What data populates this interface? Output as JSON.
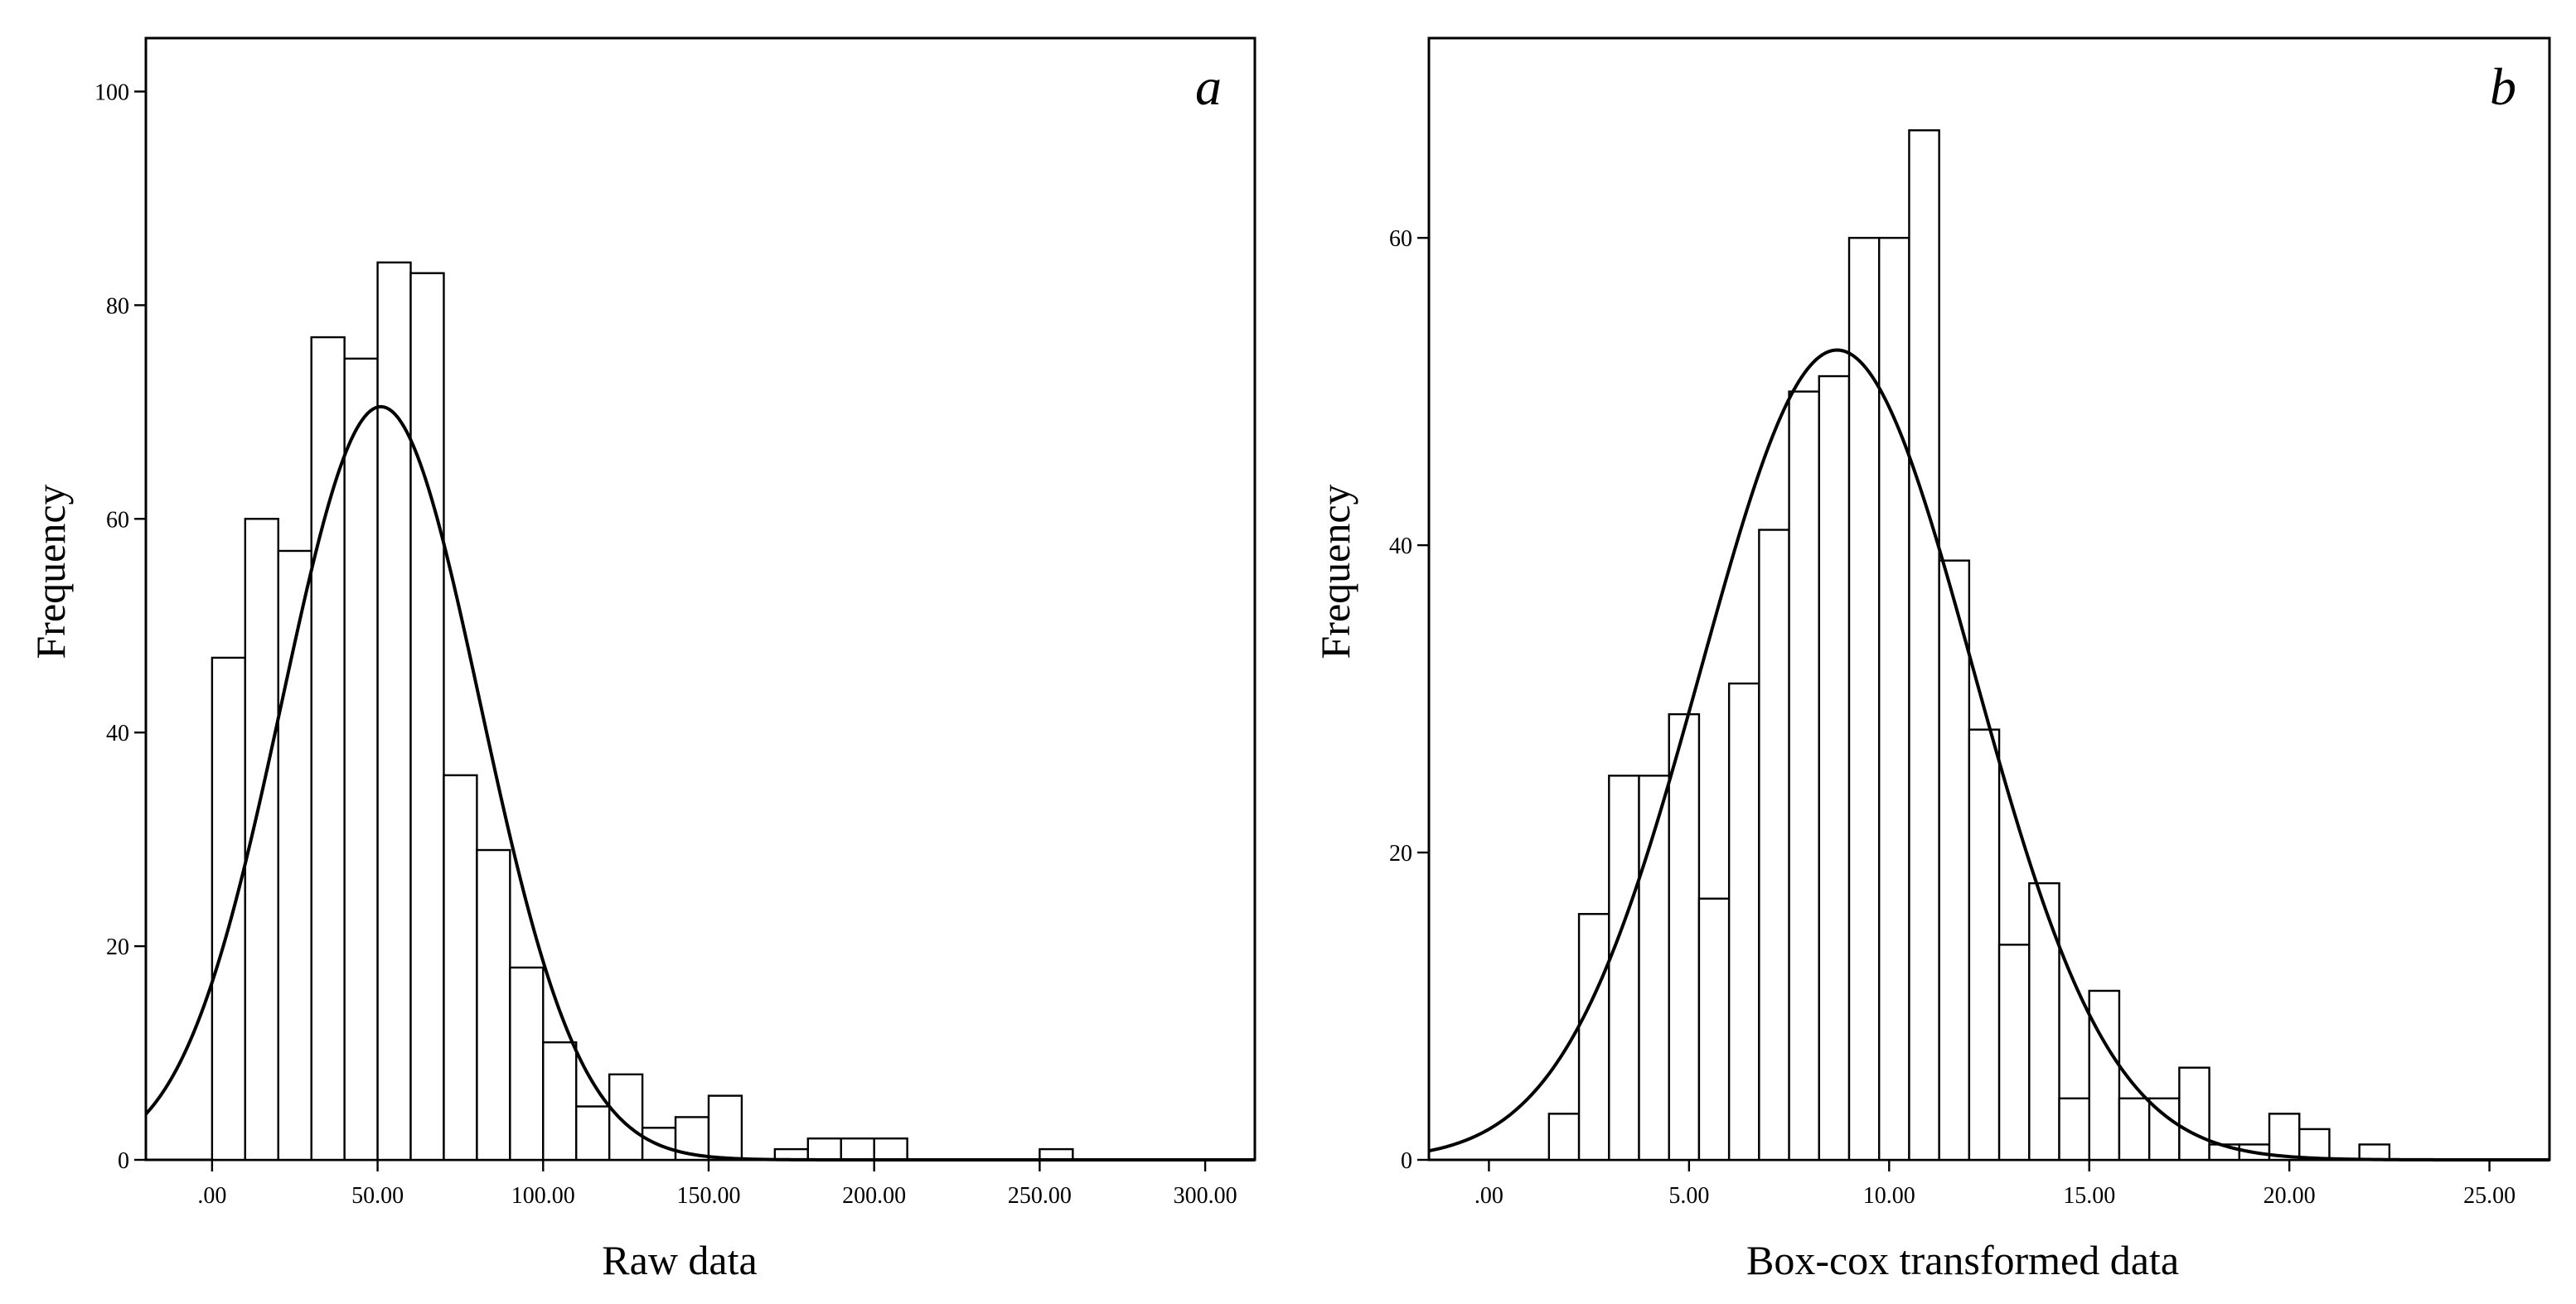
{
  "chart_data": [
    {
      "type": "bar",
      "panel_label": "a",
      "xlabel": "Raw data",
      "ylabel": "Frequency",
      "xlim": [
        -20,
        315
      ],
      "ylim": [
        0,
        105
      ],
      "x_ticks": [
        0,
        50,
        100,
        150,
        200,
        250,
        300
      ],
      "x_tick_labels": [
        ".00",
        "50.00",
        "100.00",
        "150.00",
        "200.00",
        "250.00",
        "300.00"
      ],
      "y_ticks": [
        0,
        20,
        40,
        60,
        80,
        100
      ],
      "y_tick_labels": [
        "0",
        "20",
        "40",
        "60",
        "80",
        "100"
      ],
      "bin_width": 10,
      "bins_start": [
        0,
        10,
        20,
        30,
        40,
        50,
        60,
        70,
        80,
        90,
        100,
        110,
        120,
        130,
        140,
        150,
        160,
        170,
        180,
        190,
        200,
        210,
        220,
        230,
        240,
        250
      ],
      "values": [
        47,
        60,
        57,
        77,
        75,
        84,
        83,
        36,
        29,
        18,
        11,
        5,
        8,
        3,
        4,
        6,
        0,
        1,
        2,
        2,
        2,
        0,
        0,
        0,
        0,
        1
      ],
      "normal_curve": {
        "mean": 51,
        "sd": 30,
        "peak": 70.5
      },
      "grid": false,
      "legend": "none"
    },
    {
      "type": "bar",
      "panel_label": "b",
      "xlabel": "Box-cox transformed data",
      "ylabel": "Frequency",
      "xlim": [
        -1.5,
        26.5
      ],
      "ylim": [
        0,
        73
      ],
      "x_ticks": [
        0,
        5,
        10,
        15,
        20,
        25
      ],
      "x_tick_labels": [
        ".00",
        "5.00",
        "10.00",
        "15.00",
        "20.00",
        "25.00"
      ],
      "y_ticks": [
        0,
        20,
        40,
        60
      ],
      "y_tick_labels": [
        "0",
        "20",
        "40",
        "60"
      ],
      "bin_width": 0.75,
      "bins_start": [
        1.5,
        2.25,
        3.0,
        3.75,
        4.5,
        5.25,
        6.0,
        6.75,
        7.5,
        8.25,
        9.0,
        9.75,
        10.5,
        11.25,
        12.0,
        12.75,
        13.5,
        14.25,
        15.0,
        15.75,
        16.5,
        17.25,
        18.0,
        18.75,
        19.5,
        20.25,
        21.0,
        21.75
      ],
      "values": [
        3,
        16,
        25,
        25,
        29,
        17,
        31,
        41,
        50,
        51,
        60,
        60,
        67,
        39,
        28,
        14,
        18,
        4,
        11,
        4,
        4,
        6,
        1,
        1,
        3,
        2,
        0,
        1
      ],
      "normal_curve": {
        "mean": 8.7,
        "sd": 3.4,
        "peak": 52.7
      },
      "grid": false,
      "legend": "none"
    }
  ]
}
